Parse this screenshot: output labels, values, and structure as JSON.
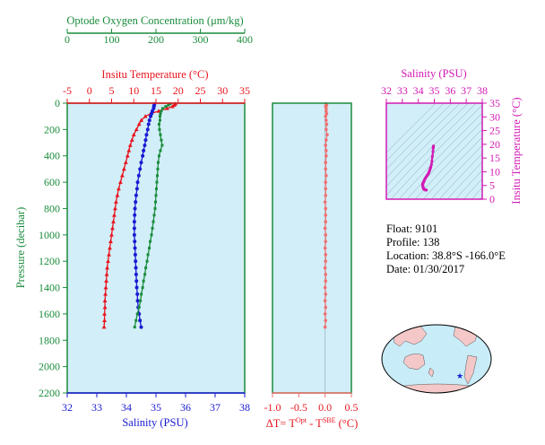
{
  "colors": {
    "oxygen": "#1a8c3c",
    "temperature": "#e8141e",
    "salinity": "#1a1ad2",
    "delta": "#f07070",
    "ts": "#d21ab4",
    "plot_bg": "#d2eef8",
    "land": "#f4c8c8",
    "ocean": "#c8ecf8"
  },
  "info": {
    "float": "Float:  9101",
    "profile": "Profile:  138",
    "location": "Location:  38.8°S  -166.0°E",
    "date": "Date:  01/30/2017"
  },
  "chart_data": [
    {
      "type": "line",
      "panel": "profiles",
      "ylabel": "Pressure (decibar)",
      "ylim": [
        2200,
        0
      ],
      "y_ticks": [
        "0",
        "200",
        "400",
        "600",
        "800",
        "1000",
        "1200",
        "1400",
        "1600",
        "1800",
        "2000",
        "2200"
      ],
      "axes": {
        "oxygen": {
          "label": "Optode Oxygen Concentration (μm/kg)",
          "range": [
            0,
            400
          ],
          "ticks": [
            "0",
            "100",
            "200",
            "300",
            "400"
          ]
        },
        "temperature": {
          "label": "Insitu Temperature (°C)",
          "range": [
            -5,
            35
          ],
          "ticks": [
            "-5",
            "0",
            "5",
            "10",
            "15",
            "20",
            "25",
            "30",
            "35"
          ]
        },
        "salinity": {
          "label": "Salinity (PSU)",
          "range": [
            32,
            38
          ],
          "ticks": [
            "32",
            "33",
            "34",
            "35",
            "36",
            "37",
            "38"
          ]
        }
      },
      "pressure": [
        5,
        15,
        25,
        40,
        60,
        80,
        100,
        130,
        160,
        200,
        240,
        280,
        320,
        360,
        400,
        450,
        500,
        550,
        600,
        650,
        700,
        750,
        800,
        850,
        900,
        950,
        1000,
        1050,
        1100,
        1150,
        1200,
        1250,
        1300,
        1350,
        1400,
        1450,
        1500,
        1550,
        1600,
        1650,
        1700
      ],
      "series": [
        {
          "name": "temperature",
          "values": [
            19.4,
            19.1,
            18.7,
            17.5,
            15.6,
            13.8,
            12.6,
            11.7,
            11.2,
            10.6,
            10.0,
            9.6,
            9.2,
            8.9,
            8.6,
            8.2,
            7.8,
            7.4,
            7.0,
            6.6,
            6.3,
            6.0,
            5.8,
            5.6,
            5.4,
            5.2,
            5.0,
            4.8,
            4.6,
            4.4,
            4.2,
            4.0,
            3.9,
            3.8,
            3.7,
            3.6,
            3.5,
            3.5,
            3.4,
            3.4,
            3.3
          ]
        },
        {
          "name": "salinity",
          "values": [
            34.95,
            34.94,
            34.93,
            34.92,
            34.88,
            34.85,
            34.82,
            34.78,
            34.75,
            34.72,
            34.68,
            34.65,
            34.62,
            34.58,
            34.55,
            34.5,
            34.46,
            34.42,
            34.38,
            34.36,
            34.33,
            34.31,
            34.29,
            34.28,
            34.27,
            34.27,
            34.27,
            34.28,
            34.29,
            34.3,
            34.31,
            34.32,
            34.33,
            34.34,
            34.35,
            34.37,
            34.38,
            34.4,
            34.43,
            34.46,
            34.5
          ]
        },
        {
          "name": "oxygen",
          "values": [
            232,
            228,
            222,
            215,
            212,
            210,
            209,
            209,
            207,
            208,
            210,
            212,
            214,
            210,
            207,
            205,
            204,
            203,
            202,
            201,
            200,
            199,
            198,
            196,
            194,
            192,
            190,
            187,
            185,
            182,
            180,
            177,
            175,
            172,
            170,
            167,
            165,
            162,
            158,
            155,
            152
          ]
        }
      ]
    },
    {
      "type": "scatter",
      "panel": "delta",
      "xlabel": "ΔT= T",
      "xlabel_sup1": "Opt",
      "xlabel_mid": " - T",
      "xlabel_sup2": "SBE",
      "xlabel_unit": " (°C)",
      "xlim": [
        -1.0,
        0.5
      ],
      "x_ticks": [
        "-1.0",
        "-0.5",
        "0.0",
        "0.5"
      ],
      "pressure": [
        5,
        15,
        25,
        40,
        60,
        80,
        100,
        130,
        160,
        200,
        240,
        280,
        320,
        360,
        400,
        450,
        500,
        550,
        600,
        650,
        700,
        750,
        800,
        850,
        900,
        950,
        1000,
        1050,
        1100,
        1150,
        1200,
        1250,
        1300,
        1350,
        1400,
        1450,
        1500,
        1550,
        1600,
        1650,
        1700
      ],
      "values": [
        0.02,
        0.03,
        0.01,
        0.02,
        0.02,
        0.03,
        0.01,
        0.02,
        0.03,
        0.02,
        0.04,
        0.02,
        0.01,
        0.02,
        0.02,
        0.01,
        0.01,
        0.02,
        0.01,
        0.01,
        0.01,
        0.0,
        0.01,
        0.01,
        0.01,
        0.0,
        0.01,
        0.01,
        0.0,
        0.01,
        0.01,
        0.0,
        0.01,
        0.01,
        0.0,
        0.01,
        0.0,
        0.01,
        0.0,
        0.01,
        0.0
      ]
    },
    {
      "type": "scatter",
      "panel": "ts",
      "title": "Salinity (PSU)",
      "ylabel": "Insitu Temperature (°C)",
      "xlim": [
        32,
        38
      ],
      "ylim": [
        0,
        35
      ],
      "x_ticks": [
        "32",
        "33",
        "34",
        "35",
        "36",
        "37",
        "38"
      ],
      "y_ticks": [
        "0",
        "5",
        "10",
        "15",
        "20",
        "25",
        "30",
        "35"
      ]
    }
  ]
}
